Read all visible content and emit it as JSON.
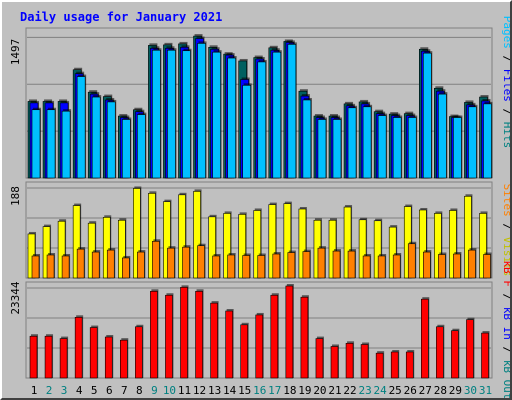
{
  "title": "Daily usage for January 2021",
  "colors": {
    "pages": "#006060",
    "files": "#0000ff",
    "hits": "#00c0ff",
    "visits": "#ffff00",
    "sites": "#ff8000",
    "kbf": "#ff0000",
    "bg": "#c0c0c0",
    "label_blue": "#0000ff",
    "label_teal": "#008080"
  },
  "panels": {
    "top": {
      "max_label": "1497",
      "legend": [
        {
          "text": "Pages",
          "color": "#00c0ff"
        },
        {
          "text": " / ",
          "color": "#000000"
        },
        {
          "text": "Files",
          "color": "#0000ff"
        },
        {
          "text": " / ",
          "color": "#000000"
        },
        {
          "text": "Hits",
          "color": "#008080"
        }
      ]
    },
    "middle": {
      "max_label": "188",
      "legend": [
        {
          "text": "Sites",
          "color": "#ff8000"
        },
        {
          "text": " / ",
          "color": "#000000"
        },
        {
          "text": "Visits",
          "color": "#c0c000"
        }
      ]
    },
    "bottom": {
      "max_label": "23344",
      "legend": [
        {
          "text": "kB F",
          "color": "#ff0000"
        },
        {
          "text": " / ",
          "color": "#000000"
        },
        {
          "text": "kB In",
          "color": "#0000ff"
        },
        {
          "text": " / ",
          "color": "#000000"
        },
        {
          "text": "kB Out",
          "color": "#008080"
        }
      ]
    }
  },
  "chart_data": {
    "type": "bar",
    "title": "Daily usage for January 2021",
    "categories": [
      "1",
      "2",
      "3",
      "4",
      "5",
      "6",
      "7",
      "8",
      "9",
      "10",
      "11",
      "12",
      "13",
      "14",
      "15",
      "16",
      "17",
      "18",
      "19",
      "20",
      "21",
      "22",
      "23",
      "24",
      "25",
      "26",
      "27",
      "28",
      "29",
      "30",
      "31"
    ],
    "weekend_days": [
      "2",
      "3",
      "9",
      "10",
      "16",
      "17",
      "23",
      "24",
      "30",
      "31"
    ],
    "series": [
      {
        "name": "Hits",
        "panel": "top",
        "max": 1497,
        "values": [
          785,
          785,
          785,
          1110,
          880,
          835,
          635,
          700,
          1360,
          1365,
          1375,
          1455,
          1340,
          1270,
          1200,
          1235,
          1335,
          1400,
          890,
          635,
          635,
          760,
          780,
          680,
          655,
          660,
          1320,
          920,
          630,
          775,
          830
        ]
      },
      {
        "name": "Files",
        "panel": "top",
        "max": 1497,
        "values": [
          770,
          770,
          770,
          1070,
          860,
          800,
          620,
          680,
          1330,
          1330,
          1340,
          1430,
          1320,
          1260,
          1010,
          1220,
          1310,
          1390,
          840,
          620,
          620,
          740,
          760,
          660,
          640,
          640,
          1300,
          890,
          620,
          750,
          790
        ]
      },
      {
        "name": "Pages",
        "panel": "top",
        "max": 1497,
        "values": [
          700,
          700,
          685,
          1040,
          830,
          780,
          600,
          650,
          1310,
          1310,
          1305,
          1380,
          1290,
          1230,
          950,
          1190,
          1290,
          1370,
          800,
          600,
          600,
          720,
          730,
          640,
          620,
          620,
          1280,
          860,
          620,
          730,
          760
        ]
      },
      {
        "name": "Visits",
        "panel": "middle",
        "max": 188,
        "values": [
          90,
          105,
          116,
          148,
          112,
          124,
          118,
          183,
          173,
          156,
          170,
          177,
          125,
          132,
          130,
          138,
          150,
          152,
          141,
          118,
          118,
          145,
          119,
          117,
          104,
          146,
          139,
          132,
          138,
          167,
          132
        ]
      },
      {
        "name": "Sites",
        "panel": "middle",
        "max": 188,
        "values": [
          45,
          47,
          45,
          59,
          53,
          57,
          41,
          53,
          75,
          61,
          63,
          66,
          45,
          47,
          46,
          46,
          49,
          52,
          54,
          61,
          55,
          55,
          45,
          45,
          47,
          70,
          53,
          48,
          49,
          57,
          48
        ]
      },
      {
        "name": "kB F",
        "panel": "bottom",
        "max": 23344,
        "values": [
          10600,
          10600,
          10000,
          15400,
          12800,
          10400,
          9600,
          13000,
          22000,
          21000,
          23000,
          22000,
          19000,
          17000,
          13500,
          16000,
          21000,
          23344,
          20500,
          10000,
          8000,
          8800,
          8500,
          6300,
          6600,
          6600,
          20000,
          13000,
          12000,
          14800,
          11400
        ]
      }
    ]
  }
}
